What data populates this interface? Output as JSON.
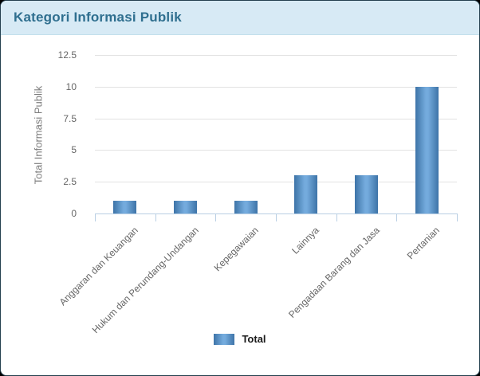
{
  "window": {
    "title": "Kategori Informasi Publik"
  },
  "chart_data": {
    "type": "bar",
    "title": "Kategori Informasi Publik",
    "categories": [
      "Anggaran dan Keuangan",
      "Hukum dan Perundang-Undangan",
      "Kepegawaian",
      "Lainnya",
      "Pengadaan Barang dan Jasa",
      "Pertanian"
    ],
    "series": [
      {
        "name": "Total",
        "values": [
          1,
          1,
          1,
          3,
          3,
          10
        ]
      }
    ],
    "xlabel": "",
    "ylabel": "Total Informasi Publik",
    "ylim": [
      0,
      12.5
    ],
    "yticks": [
      "0",
      "2.5",
      "5",
      "7.5",
      "10",
      "12.5"
    ],
    "ytick_values": [
      0,
      2.5,
      5,
      7.5,
      10,
      12.5
    ],
    "grid": true,
    "legend_position": "bottom"
  },
  "colors": {
    "card_border": "#24404f",
    "header_bg": "#d7eaf5",
    "header_border": "#c3dfec",
    "title_text": "#2f6f8f",
    "bar_edge": "#3e74a8",
    "bar_center": "#74abdd",
    "axis_line": "#b9cfe4",
    "gridline": "#e2e2e2",
    "tick_text": "#666666",
    "axis_title_text": "#7d7d7d",
    "legend_text": "#1a1a1a"
  }
}
